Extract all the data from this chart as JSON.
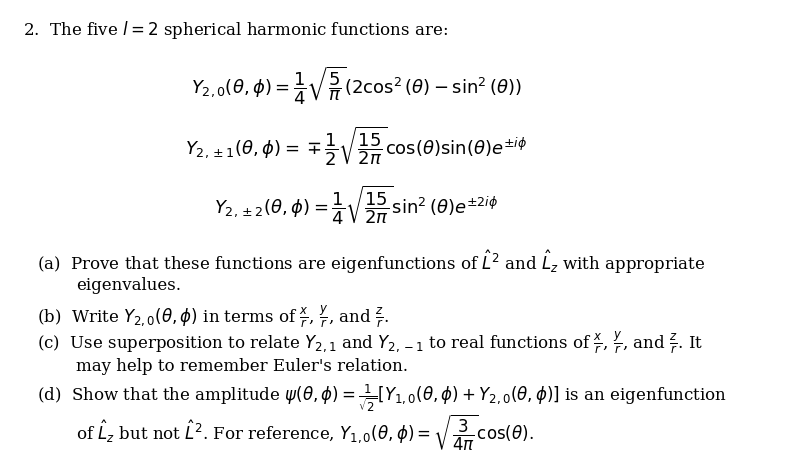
{
  "background_color": "#ffffff",
  "figsize": [
    8.08,
    4.6
  ],
  "dpi": 100,
  "title_text": "2.\\; \\text{The five }l=2\\text{ spherical harmonic functions are:}",
  "eq1": "$Y_{2,0}(\\theta,\\phi) = \\dfrac{1}{4}\\sqrt{\\dfrac{5}{\\pi}}(2\\cos^2(\\theta) - \\sin^2(\\theta))$",
  "eq2": "$Y_{2,\\pm1}(\\theta,\\phi) = \\mp\\dfrac{1}{2}\\sqrt{\\dfrac{15}{2\\pi}}\\cos(\\theta)\\sin(\\theta)e^{\\pm i\\phi}$",
  "eq3": "$Y_{2,\\pm2}(\\theta,\\phi) = \\dfrac{1}{4}\\sqrt{\\dfrac{15}{2\\pi}}\\sin^2(\\theta)e^{\\pm 2i\\phi}$",
  "part_a": "(a)\\; \\text{Prove that these functions are eigenfunctions of }\\hat{L}^2\\text{ and }\\hat{L}_z\\text{ with appropriate}",
  "part_a2": "\\text{eigenvalues.}",
  "part_b": "(b)\\; \\text{Write }Y_{2,0}(\\theta,\\phi)\\text{ in terms of }\\frac{x}{r}\\text{, }\\frac{y}{r}\\text{, and }\\frac{z}{r}\\text{.}",
  "part_c": "(c)\\; \\text{Use superposition to relate }Y_{2,1}\\text{ and }Y_{2,-1}\\text{ to real functions of }\\frac{x}{r}\\text{, }\\frac{y}{r}\\text{, and }\\frac{z}{r}\\text{. It}",
  "part_c2": "\\text{may help to remember Euler's relation.}",
  "part_d": "(d)\\; \\text{Show that the amplitude }\\psi(\\theta,\\phi) = \\frac{1}{\\sqrt{2}}[Y_{1,0}(\\theta,\\phi)+Y_{2,0}(\\theta,\\phi)]\\text{ is an eigenfunction}",
  "part_d2": "\\text{of }\\hat{L}_z\\text{ but not }\\hat{L}^2\\text{. For reference, }Y_{1,0}(\\theta,\\phi) = \\sqrt{\\dfrac{3}{4\\pi}}\\cos(\\theta)\\text{.}",
  "font_size_header": 13,
  "font_size_eq": 13,
  "font_size_parts": 12
}
